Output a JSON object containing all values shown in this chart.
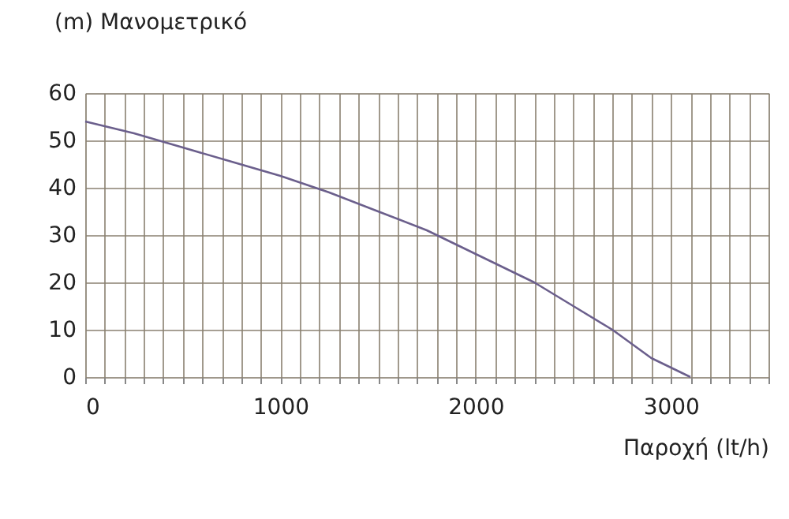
{
  "chart_data": {
    "type": "line",
    "ylabel": "(m) Μανομετρικό",
    "xlabel": "Παροχή (lt/h)",
    "x": [
      0,
      250,
      500,
      750,
      1000,
      1250,
      1500,
      1750,
      2000,
      2300,
      2500,
      2700,
      2900,
      3100
    ],
    "series": [
      {
        "color": "#6b5f8c",
        "values": [
          54,
          51.5,
          48.5,
          45.5,
          42.5,
          39,
          35,
          31,
          26,
          20,
          15,
          10,
          4,
          0
        ]
      }
    ],
    "xlim": [
      0,
      3500
    ],
    "xticks": [
      0,
      {
        "value": 100,
        "label": null
      },
      {
        "value": 200,
        "label": null
      },
      {
        "value": 300,
        "label": null
      },
      {
        "value": 400,
        "label": null
      },
      {
        "value": 500,
        "label": null
      },
      {
        "value": 600,
        "label": null
      },
      {
        "value": 700,
        "label": null
      },
      {
        "value": 800,
        "label": null
      },
      {
        "value": 900,
        "label": null
      },
      1000,
      {
        "value": 1100,
        "label": null
      },
      {
        "value": 1200,
        "label": null
      },
      {
        "value": 1300,
        "label": null
      },
      {
        "value": 1400,
        "label": null
      },
      {
        "value": 1500,
        "label": null
      },
      {
        "value": 1600,
        "label": null
      },
      {
        "value": 1700,
        "label": null
      },
      {
        "value": 1800,
        "label": null
      },
      {
        "value": 1900,
        "label": null
      },
      2000,
      {
        "value": 2100,
        "label": null
      },
      {
        "value": 2200,
        "label": null
      },
      {
        "value": 2300,
        "label": null
      },
      {
        "value": 2400,
        "label": null
      },
      {
        "value": 2500,
        "label": null
      },
      {
        "value": 2600,
        "label": null
      },
      {
        "value": 2700,
        "label": null
      },
      {
        "value": 2800,
        "label": null
      },
      {
        "value": 2900,
        "label": null
      },
      3000,
      {
        "value": 3100,
        "label": null
      },
      {
        "value": 3200,
        "label": null
      },
      {
        "value": 3300,
        "label": null
      },
      {
        "value": 3400,
        "label": null
      },
      {
        "value": 3500,
        "label": null
      }
    ],
    "ylim": [
      0,
      60
    ],
    "yticks": [
      0,
      10,
      20,
      30,
      40,
      50,
      60
    ],
    "grid": true,
    "marker": "none",
    "line_style": "solid"
  }
}
